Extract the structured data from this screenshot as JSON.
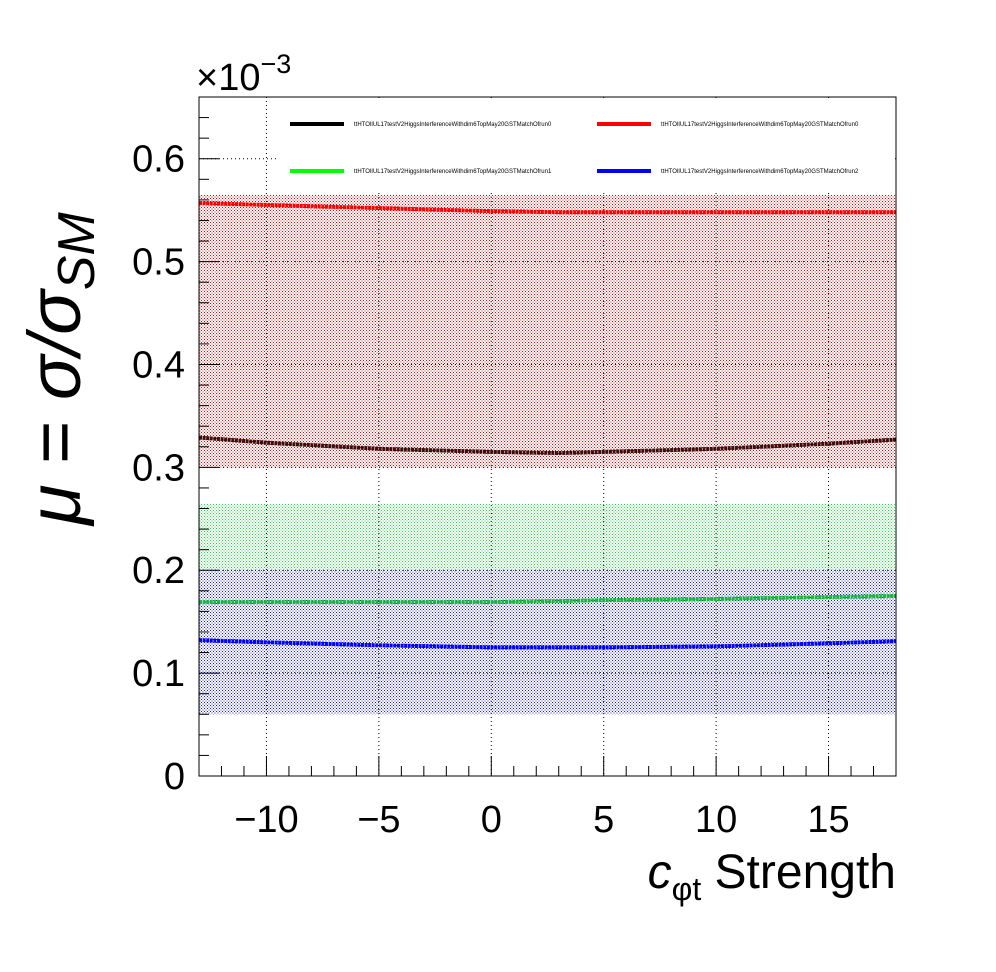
{
  "chart_data": {
    "type": "line",
    "ylabel": "μ = σ/σSM",
    "ylabel_parts": {
      "mu": "μ",
      "eq": " = ",
      "sigma": "σ/σ",
      "sub": "SM"
    },
    "xlabel_parts": {
      "c": "c",
      "sub": "φt",
      "rest": " Strength"
    },
    "multiplier": {
      "prefix": "×10",
      "exp": "−3"
    },
    "xlim": [
      -13,
      18
    ],
    "ylim": [
      0,
      0.00066
    ],
    "x_ticks": [
      -10,
      -5,
      0,
      5,
      10,
      15
    ],
    "x_tick_labels": [
      "−10",
      "−5",
      "0",
      "5",
      "10",
      "15"
    ],
    "y_ticks": [
      0,
      0.0001,
      0.0002,
      0.0003,
      0.0004,
      0.0005,
      0.0006
    ],
    "y_tick_labels": [
      "0",
      "0.1",
      "0.2",
      "0.3",
      "0.4",
      "0.5",
      "0.6"
    ],
    "grid": true,
    "legend_position": "top",
    "series": [
      {
        "name": "ttHTOlIUL17testV2HiggsInterferenceWithdim6TopMay20GSTMatchOfrun0",
        "color": "#000000",
        "band_color": "#ff0000",
        "x": [
          -13,
          -10,
          -5,
          0,
          3,
          5,
          10,
          15,
          18
        ],
        "values": [
          0.000329,
          0.000324,
          0.000318,
          0.000315,
          0.000314,
          0.000315,
          0.000318,
          0.000323,
          0.000327
        ],
        "band": [
          0.0003,
          0.000565
        ]
      },
      {
        "name": "ttHTOlIUL17testV2HiggsInterferenceWithdim6TopMay20GSTMatchOfrun0",
        "color": "#ff0000",
        "x": [
          -13,
          -10,
          -5,
          0,
          3,
          5,
          10,
          15,
          18
        ],
        "values": [
          0.000557,
          0.000555,
          0.000552,
          0.000549,
          0.000548,
          0.000548,
          0.000548,
          0.000548,
          0.000548
        ]
      },
      {
        "name": "ttHTOlIUL17testV2HiggsInterferenceWithdim6TopMay20GSTMatchOfrun1",
        "color": "#00ff00",
        "line_color": "#19b83a",
        "band_color": "#33dd55",
        "x": [
          -13,
          -10,
          -5,
          0,
          3,
          5,
          10,
          15,
          18
        ],
        "values": [
          0.000169,
          0.000169,
          0.000169,
          0.000169,
          0.00017,
          0.000171,
          0.000172,
          0.000174,
          0.000175
        ],
        "band": [
          0.0002,
          0.000265
        ]
      },
      {
        "name": "ttHTOlIUL17testV2HiggsInterferenceWithdim6TopMay20GSTMatchOfrun2",
        "color": "#0000ff",
        "band_color": "#0000cc",
        "x": [
          -13,
          -10,
          -5,
          0,
          3,
          5,
          10,
          15,
          18
        ],
        "values": [
          0.000132,
          0.00013,
          0.000127,
          0.000125,
          0.000125,
          0.000125,
          0.000126,
          0.000129,
          0.000131
        ],
        "band": [
          6e-05,
          0.0002
        ]
      }
    ]
  }
}
